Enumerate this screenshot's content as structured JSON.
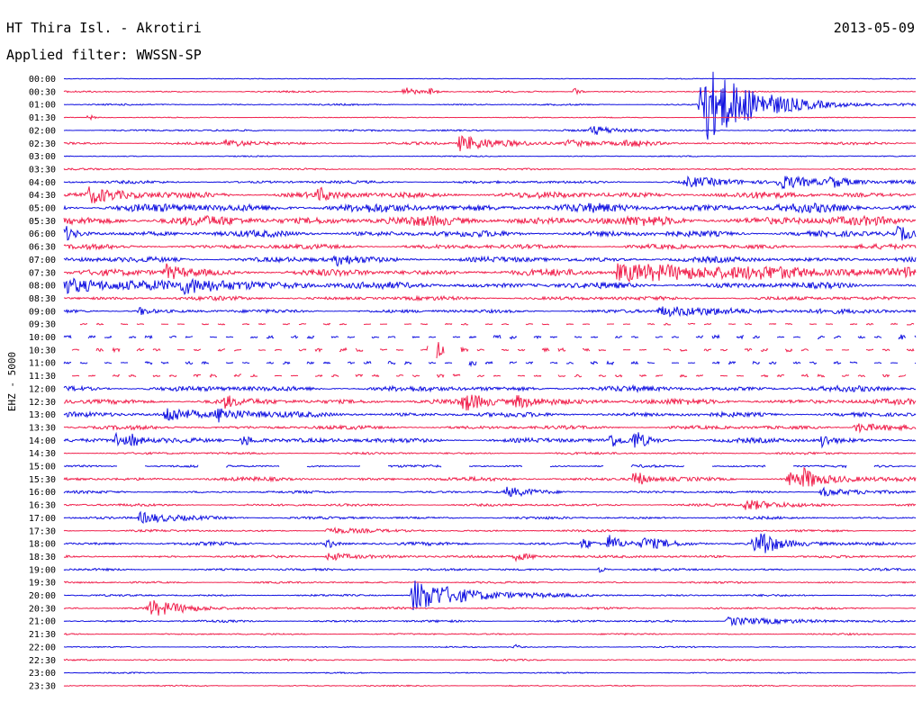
{
  "header": {
    "station": "HT Thira Isl. - Akrotiri",
    "date": "2013-05-09",
    "filter": "Applied filter: WWSSN-SP",
    "channel": "EHZ - 5000"
  },
  "colors": {
    "trace_a": "#1010e0",
    "trace_b": "#f0204c",
    "text": "#000000",
    "background": "#ffffff"
  },
  "chart_data": {
    "type": "line",
    "title": "HT Thira Isl. - Akrotiri",
    "subtitle": "Applied filter: WWSSN-SP",
    "ylabel": "EHZ - 5000",
    "xlabel": "",
    "grid": false,
    "legend": "none",
    "row_labels": [
      "00:00",
      "00:30",
      "01:00",
      "01:30",
      "02:00",
      "02:30",
      "03:00",
      "03:30",
      "04:00",
      "04:30",
      "05:00",
      "05:30",
      "06:00",
      "06:30",
      "07:00",
      "07:30",
      "08:00",
      "08:30",
      "09:00",
      "09:30",
      "10:00",
      "10:30",
      "11:00",
      "11:30",
      "12:00",
      "12:30",
      "13:00",
      "13:30",
      "14:00",
      "14:30",
      "15:00",
      "15:30",
      "16:00",
      "16:30",
      "17:00",
      "17:30",
      "18:00",
      "18:30",
      "19:00",
      "19:30",
      "20:00",
      "20:30",
      "21:00",
      "21:30",
      "22:00",
      "22:30",
      "23:00",
      "23:30"
    ],
    "row_noise": [
      0.5,
      1,
      1,
      0.6,
      1.2,
      1.6,
      0.7,
      1.1,
      1.8,
      4,
      5.5,
      6,
      4,
      3,
      3.5,
      4.2,
      3.8,
      2.5,
      2.2,
      1,
      2,
      2,
      2,
      2,
      3.5,
      3.5,
      3,
      2.4,
      3,
      1.4,
      1.6,
      2.4,
      1.6,
      1.6,
      1.6,
      1.4,
      2,
      1.6,
      1.4,
      1.2,
      1.2,
      1.4,
      1.4,
      1,
      0.8,
      1,
      0.8,
      0.8
    ],
    "gap_rows": [
      19,
      20,
      21,
      22,
      23,
      30
    ],
    "events": [
      {
        "row": 1,
        "x": 0.4,
        "amp": 6,
        "width": 0.012
      },
      {
        "row": 1,
        "x": 0.43,
        "amp": 4,
        "width": 0.006
      },
      {
        "row": 1,
        "x": 0.6,
        "amp": 5,
        "width": 0.005
      },
      {
        "row": 2,
        "x": 0.748,
        "amp": 48,
        "width": 0.055
      },
      {
        "row": 3,
        "x": 0.03,
        "amp": 4,
        "width": 0.004
      },
      {
        "row": 4,
        "x": 0.62,
        "amp": 5,
        "width": 0.03
      },
      {
        "row": 5,
        "x": 0.19,
        "amp": 4,
        "width": 0.03
      },
      {
        "row": 5,
        "x": 0.465,
        "amp": 9,
        "width": 0.045
      },
      {
        "row": 5,
        "x": 0.59,
        "amp": 4,
        "width": 0.03
      },
      {
        "row": 5,
        "x": 0.66,
        "amp": 3,
        "width": 0.02
      },
      {
        "row": 8,
        "x": 0.73,
        "amp": 5,
        "width": 0.05
      },
      {
        "row": 8,
        "x": 0.84,
        "amp": 7,
        "width": 0.04
      },
      {
        "row": 8,
        "x": 0.9,
        "amp": 5,
        "width": 0.03
      },
      {
        "row": 9,
        "x": 0.03,
        "amp": 8,
        "width": 0.03
      },
      {
        "row": 9,
        "x": 0.3,
        "amp": 7,
        "width": 0.01
      },
      {
        "row": 12,
        "x": 0.0,
        "amp": 8,
        "width": 0.01
      },
      {
        "row": 12,
        "x": 0.98,
        "amp": 8,
        "width": 0.01
      },
      {
        "row": 14,
        "x": 0.32,
        "amp": 6,
        "width": 0.02
      },
      {
        "row": 15,
        "x": 0.12,
        "amp": 8,
        "width": 0.02
      },
      {
        "row": 15,
        "x": 0.65,
        "amp": 9,
        "width": 0.2
      },
      {
        "row": 15,
        "x": 0.99,
        "amp": 6,
        "width": 0.02
      },
      {
        "row": 16,
        "x": 0.0,
        "amp": 8,
        "width": 0.08
      },
      {
        "row": 16,
        "x": 0.14,
        "amp": 6,
        "width": 0.08
      },
      {
        "row": 18,
        "x": 0.09,
        "amp": 5,
        "width": 0.01
      },
      {
        "row": 18,
        "x": 0.7,
        "amp": 5,
        "width": 0.1
      },
      {
        "row": 20,
        "x": 0.87,
        "amp": 8,
        "width": 0.008
      },
      {
        "row": 20,
        "x": 0.97,
        "amp": 10,
        "width": 0.008
      },
      {
        "row": 21,
        "x": 0.43,
        "amp": 14,
        "width": 0.006
      },
      {
        "row": 21,
        "x": 0.44,
        "amp": 12,
        "width": 0.004
      },
      {
        "row": 21,
        "x": 0.46,
        "amp": 10,
        "width": 0.004
      },
      {
        "row": 22,
        "x": 0.47,
        "amp": 7,
        "width": 0.01
      },
      {
        "row": 25,
        "x": 0.19,
        "amp": 7,
        "width": 0.008
      },
      {
        "row": 25,
        "x": 0.47,
        "amp": 9,
        "width": 0.02
      },
      {
        "row": 25,
        "x": 0.53,
        "amp": 7,
        "width": 0.03
      },
      {
        "row": 26,
        "x": 0.12,
        "amp": 9,
        "width": 0.03
      },
      {
        "row": 26,
        "x": 0.18,
        "amp": 8,
        "width": 0.03
      },
      {
        "row": 27,
        "x": 0.93,
        "amp": 6,
        "width": 0.03
      },
      {
        "row": 28,
        "x": 0.06,
        "amp": 10,
        "width": 0.01
      },
      {
        "row": 28,
        "x": 0.08,
        "amp": 7,
        "width": 0.008
      },
      {
        "row": 28,
        "x": 0.21,
        "amp": 7,
        "width": 0.015
      },
      {
        "row": 28,
        "x": 0.64,
        "amp": 9,
        "width": 0.01
      },
      {
        "row": 28,
        "x": 0.67,
        "amp": 11,
        "width": 0.012
      },
      {
        "row": 28,
        "x": 0.89,
        "amp": 8,
        "width": 0.01
      },
      {
        "row": 31,
        "x": 0.67,
        "amp": 12,
        "width": 0.01
      },
      {
        "row": 31,
        "x": 0.85,
        "amp": 7,
        "width": 0.05
      },
      {
        "row": 31,
        "x": 0.87,
        "amp": 9,
        "width": 0.008
      },
      {
        "row": 32,
        "x": 0.52,
        "amp": 5,
        "width": 0.03
      },
      {
        "row": 32,
        "x": 0.89,
        "amp": 5,
        "width": 0.03
      },
      {
        "row": 33,
        "x": 0.8,
        "amp": 6,
        "width": 0.04
      },
      {
        "row": 34,
        "x": 0.09,
        "amp": 6,
        "width": 0.04
      },
      {
        "row": 35,
        "x": 0.31,
        "amp": 4,
        "width": 0.03
      },
      {
        "row": 36,
        "x": 0.31,
        "amp": 6,
        "width": 0.006
      },
      {
        "row": 36,
        "x": 0.61,
        "amp": 8,
        "width": 0.008
      },
      {
        "row": 36,
        "x": 0.64,
        "amp": 10,
        "width": 0.012
      },
      {
        "row": 36,
        "x": 0.68,
        "amp": 6,
        "width": 0.03
      },
      {
        "row": 36,
        "x": 0.81,
        "amp": 9,
        "width": 0.03
      },
      {
        "row": 36,
        "x": 0.82,
        "amp": 12,
        "width": 0.008
      },
      {
        "row": 37,
        "x": 0.31,
        "amp": 5,
        "width": 0.03
      },
      {
        "row": 37,
        "x": 0.53,
        "amp": 4,
        "width": 0.03
      },
      {
        "row": 38,
        "x": 0.63,
        "amp": 4,
        "width": 0.005
      },
      {
        "row": 40,
        "x": 0.41,
        "amp": 18,
        "width": 0.06
      },
      {
        "row": 41,
        "x": 0.1,
        "amp": 9,
        "width": 0.04
      },
      {
        "row": 42,
        "x": 0.78,
        "amp": 5,
        "width": 0.05
      },
      {
        "row": 44,
        "x": 0.53,
        "amp": 3,
        "width": 0.005
      }
    ]
  }
}
